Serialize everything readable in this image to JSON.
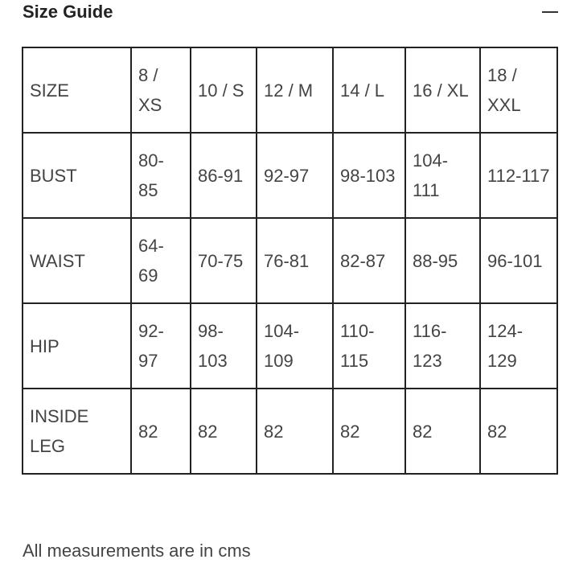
{
  "title": "Size Guide",
  "collapse_icon": "minus-icon",
  "table": {
    "rows": [
      [
        "SIZE",
        "8 / XS",
        "10 / S",
        "12 / M",
        "14 / L",
        "16 / XL",
        "18 / XXL"
      ],
      [
        "BUST",
        "80-85",
        "86-91",
        "92-97",
        "98-103",
        "104-111",
        "112-117"
      ],
      [
        "WAIST",
        "64-69",
        "70-75",
        "76-81",
        "82-87",
        "88-95",
        "96-101"
      ],
      [
        "HIP",
        "92-97",
        "98-103",
        "104-109",
        "110-115",
        "116-123",
        "124-129"
      ],
      [
        "INSIDE LEG",
        "82",
        "82",
        "82",
        "82",
        "82",
        "82"
      ]
    ]
  },
  "footer": "All measurements are in cms"
}
